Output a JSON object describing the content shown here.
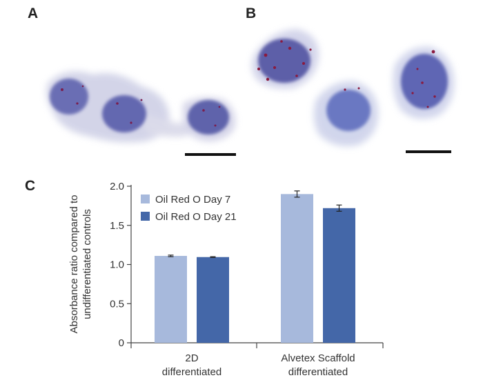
{
  "panels": {
    "a": "A",
    "b": "B",
    "c": "C"
  },
  "colors": {
    "day7": "#a7b9dc",
    "day21": "#4467a8",
    "axis": "#444444",
    "text": "#333333"
  },
  "chart_data": {
    "type": "bar",
    "ylabel": "Absorbance ratio compared to undifferentiated controls",
    "ylabel_lines": [
      "Absorbance ratio compared to",
      "undifferentiated controls"
    ],
    "ylim": [
      0,
      2.0
    ],
    "yticks": [
      "0",
      "0.5",
      "1.0",
      "1.5",
      "2.0"
    ],
    "categories": [
      "2D differentiated",
      "Alvetex Scaffold differentiated"
    ],
    "category_lines": [
      [
        "2D",
        "differentiated"
      ],
      [
        "Alvetex Scaffold",
        "differentiated"
      ]
    ],
    "legend_position": "top-left",
    "series": [
      {
        "name": "Oil Red O Day 7",
        "color": "#a7b9dc",
        "values": [
          1.11,
          1.9
        ],
        "errors": [
          0.01,
          0.04
        ]
      },
      {
        "name": "Oil Red O Day 21",
        "color": "#4467a8",
        "values": [
          1.095,
          1.72
        ],
        "errors": [
          0.005,
          0.04
        ]
      }
    ]
  }
}
